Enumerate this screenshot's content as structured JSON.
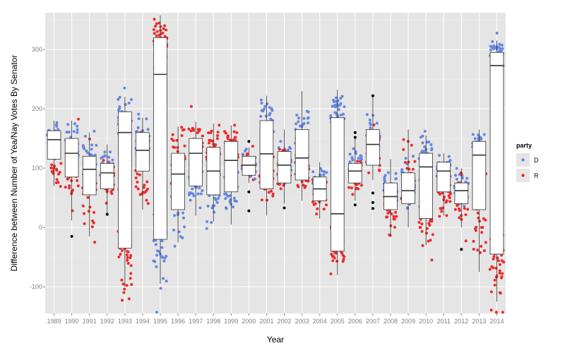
{
  "chart_data": {
    "type": "box-jitter",
    "title": "",
    "xlabel": "Year",
    "ylabel": "Difference between Number of Yea/Nay Votes By Senator",
    "ylim": [
      -145,
      362
    ],
    "yticks": [
      -100,
      0,
      100,
      200,
      300
    ],
    "grid": true,
    "legend": {
      "title": "party",
      "position": "right",
      "entries": [
        {
          "label": "D",
          "color": "#6486e0"
        },
        {
          "label": "R",
          "color": "#ee2a2a"
        }
      ]
    },
    "categories": [
      "1989",
      "1990",
      "1991",
      "1992",
      "1993",
      "1994",
      "1995",
      "1996",
      "1997",
      "1998",
      "1999",
      "2000",
      "2001",
      "2002",
      "2003",
      "2004",
      "2005",
      "2006",
      "2007",
      "2008",
      "2009",
      "2010",
      "2011",
      "2012",
      "2013",
      "2014"
    ],
    "boxes": [
      {
        "year": "1989",
        "q1": 115,
        "median": 148,
        "q3": 163,
        "lower": 70,
        "upper": 180
      },
      {
        "year": "1990",
        "q1": 85,
        "median": 125,
        "q3": 150,
        "lower": 12,
        "upper": 180
      },
      {
        "year": "1991",
        "q1": 55,
        "median": 98,
        "q3": 120,
        "lower": -15,
        "upper": 160
      },
      {
        "year": "1992",
        "q1": 65,
        "median": 92,
        "q3": 108,
        "lower": 20,
        "upper": 140
      },
      {
        "year": "1993",
        "q1": -35,
        "median": 160,
        "q3": 195,
        "lower": -100,
        "upper": 220
      },
      {
        "year": "1994",
        "q1": 95,
        "median": 130,
        "q3": 160,
        "lower": 30,
        "upper": 185
      },
      {
        "year": "1995",
        "q1": -20,
        "median": 258,
        "q3": 320,
        "lower": -95,
        "upper": 358
      },
      {
        "year": "1996",
        "q1": 30,
        "median": 90,
        "q3": 125,
        "lower": -25,
        "upper": 170
      },
      {
        "year": "1997",
        "q1": 70,
        "median": 125,
        "q3": 150,
        "lower": 20,
        "upper": 178
      },
      {
        "year": "1998",
        "q1": 55,
        "median": 95,
        "q3": 135,
        "lower": 10,
        "upper": 175
      },
      {
        "year": "1999",
        "q1": 60,
        "median": 113,
        "q3": 145,
        "lower": 5,
        "upper": 172
      },
      {
        "year": "2000",
        "q1": 88,
        "median": 105,
        "q3": 120,
        "lower": 75,
        "upper": 135
      },
      {
        "year": "2001",
        "q1": 65,
        "median": 124,
        "q3": 180,
        "lower": 20,
        "upper": 222
      },
      {
        "year": "2002",
        "q1": 75,
        "median": 105,
        "q3": 128,
        "lower": 40,
        "upper": 165
      },
      {
        "year": "2003",
        "q1": 80,
        "median": 117,
        "q3": 165,
        "lower": 45,
        "upper": 230
      },
      {
        "year": "2004",
        "q1": 45,
        "median": 65,
        "q3": 85,
        "lower": 15,
        "upper": 110
      },
      {
        "year": "2005",
        "q1": -40,
        "median": 23,
        "q3": 185,
        "lower": -80,
        "upper": 232
      },
      {
        "year": "2006",
        "q1": 75,
        "median": 95,
        "q3": 108,
        "lower": 45,
        "upper": 150
      },
      {
        "year": "2007",
        "q1": 105,
        "median": 140,
        "q3": 165,
        "lower": 80,
        "upper": 222
      },
      {
        "year": "2008",
        "q1": 30,
        "median": 52,
        "q3": 75,
        "lower": -15,
        "upper": 115
      },
      {
        "year": "2009",
        "q1": 40,
        "median": 62,
        "q3": 92,
        "lower": 0,
        "upper": 165
      },
      {
        "year": "2010",
        "q1": 15,
        "median": 102,
        "q3": 125,
        "lower": -30,
        "upper": 155
      },
      {
        "year": "2011",
        "q1": 60,
        "median": 95,
        "q3": 110,
        "lower": 20,
        "upper": 125
      },
      {
        "year": "2012",
        "q1": 40,
        "median": 62,
        "q3": 75,
        "lower": 0,
        "upper": 100
      },
      {
        "year": "2013",
        "q1": 30,
        "median": 122,
        "q3": 145,
        "lower": -75,
        "upper": 165
      },
      {
        "year": "2014",
        "q1": -45,
        "median": 273,
        "q3": 295,
        "lower": -125,
        "upper": 315
      }
    ],
    "clusters": [
      {
        "year": "1989",
        "party": "D",
        "center": 160,
        "spread": 12,
        "n": 30
      },
      {
        "year": "1989",
        "party": "R",
        "center": 105,
        "spread": 18,
        "n": 25
      },
      {
        "year": "1990",
        "party": "D",
        "center": 148,
        "spread": 18,
        "n": 25
      },
      {
        "year": "1990",
        "party": "R",
        "center": 90,
        "spread": 35,
        "n": 28
      },
      {
        "year": "1991",
        "party": "D",
        "center": 115,
        "spread": 20,
        "n": 28
      },
      {
        "year": "1991",
        "party": "R",
        "center": 60,
        "spread": 35,
        "n": 28
      },
      {
        "year": "1992",
        "party": "D",
        "center": 100,
        "spread": 18,
        "n": 28
      },
      {
        "year": "1992",
        "party": "R",
        "center": 80,
        "spread": 18,
        "n": 28
      },
      {
        "year": "1993",
        "party": "D",
        "center": 190,
        "spread": 15,
        "n": 35
      },
      {
        "year": "1993",
        "party": "R",
        "center": -50,
        "spread": 30,
        "n": 32
      },
      {
        "year": "1994",
        "party": "D",
        "center": 150,
        "spread": 20,
        "n": 35
      },
      {
        "year": "1994",
        "party": "R",
        "center": 90,
        "spread": 35,
        "n": 25
      },
      {
        "year": "1995",
        "party": "R",
        "center": 320,
        "spread": 15,
        "n": 40
      },
      {
        "year": "1995",
        "party": "D",
        "center": -40,
        "spread": 35,
        "n": 28
      },
      {
        "year": "1996",
        "party": "R",
        "center": 120,
        "spread": 25,
        "n": 30
      },
      {
        "year": "1996",
        "party": "D",
        "center": 40,
        "spread": 35,
        "n": 32
      },
      {
        "year": "1997",
        "party": "R",
        "center": 145,
        "spread": 18,
        "n": 35
      },
      {
        "year": "1997",
        "party": "D",
        "center": 70,
        "spread": 25,
        "n": 28
      },
      {
        "year": "1998",
        "party": "R",
        "center": 130,
        "spread": 20,
        "n": 35
      },
      {
        "year": "1998",
        "party": "D",
        "center": 55,
        "spread": 25,
        "n": 28
      },
      {
        "year": "1999",
        "party": "R",
        "center": 145,
        "spread": 15,
        "n": 35
      },
      {
        "year": "1999",
        "party": "D",
        "center": 60,
        "spread": 25,
        "n": 30
      },
      {
        "year": "2000",
        "party": "R",
        "center": 105,
        "spread": 12,
        "n": 28
      },
      {
        "year": "2000",
        "party": "D",
        "center": 105,
        "spread": 10,
        "n": 25
      },
      {
        "year": "2001",
        "party": "D",
        "center": 175,
        "spread": 20,
        "n": 30
      },
      {
        "year": "2001",
        "party": "R",
        "center": 70,
        "spread": 25,
        "n": 32
      },
      {
        "year": "2002",
        "party": "D",
        "center": 115,
        "spread": 20,
        "n": 30
      },
      {
        "year": "2002",
        "party": "R",
        "center": 95,
        "spread": 22,
        "n": 30
      },
      {
        "year": "2003",
        "party": "D",
        "center": 165,
        "spread": 25,
        "n": 30
      },
      {
        "year": "2003",
        "party": "R",
        "center": 95,
        "spread": 20,
        "n": 30
      },
      {
        "year": "2004",
        "party": "D",
        "center": 75,
        "spread": 15,
        "n": 30
      },
      {
        "year": "2004",
        "party": "R",
        "center": 60,
        "spread": 15,
        "n": 30
      },
      {
        "year": "2005",
        "party": "D",
        "center": 195,
        "spread": 18,
        "n": 35
      },
      {
        "year": "2005",
        "party": "R",
        "center": -40,
        "spread": 20,
        "n": 35
      },
      {
        "year": "2006",
        "party": "D",
        "center": 105,
        "spread": 15,
        "n": 28
      },
      {
        "year": "2006",
        "party": "R",
        "center": 85,
        "spread": 15,
        "n": 28
      },
      {
        "year": "2007",
        "party": "D",
        "center": 160,
        "spread": 15,
        "n": 30
      },
      {
        "year": "2007",
        "party": "R",
        "center": 130,
        "spread": 20,
        "n": 30
      },
      {
        "year": "2008",
        "party": "D",
        "center": 65,
        "spread": 15,
        "n": 30
      },
      {
        "year": "2008",
        "party": "R",
        "center": 35,
        "spread": 20,
        "n": 30
      },
      {
        "year": "2009",
        "party": "D",
        "center": 65,
        "spread": 25,
        "n": 35
      },
      {
        "year": "2009",
        "party": "R",
        "center": 95,
        "spread": 30,
        "n": 28
      },
      {
        "year": "2010",
        "party": "D",
        "center": 115,
        "spread": 18,
        "n": 35
      },
      {
        "year": "2010",
        "party": "R",
        "center": 20,
        "spread": 25,
        "n": 30
      },
      {
        "year": "2011",
        "party": "D",
        "center": 100,
        "spread": 12,
        "n": 30
      },
      {
        "year": "2011",
        "party": "R",
        "center": 60,
        "spread": 20,
        "n": 30
      },
      {
        "year": "2012",
        "party": "D",
        "center": 70,
        "spread": 12,
        "n": 28
      },
      {
        "year": "2012",
        "party": "R",
        "center": 45,
        "spread": 18,
        "n": 28
      },
      {
        "year": "2013",
        "party": "D",
        "center": 140,
        "spread": 10,
        "n": 32
      },
      {
        "year": "2013",
        "party": "R",
        "center": 10,
        "spread": 40,
        "n": 32
      },
      {
        "year": "2014",
        "party": "D",
        "center": 295,
        "spread": 10,
        "n": 40
      },
      {
        "year": "2014",
        "party": "R",
        "center": -60,
        "spread": 35,
        "n": 38
      }
    ],
    "outliers": [
      {
        "year": "1990",
        "value": -15
      },
      {
        "year": "1992",
        "value": 22
      },
      {
        "year": "2000",
        "value": 145
      },
      {
        "year": "2000",
        "value": 60
      },
      {
        "year": "2000",
        "value": 28
      },
      {
        "year": "2002",
        "value": 33
      },
      {
        "year": "2006",
        "value": 160
      },
      {
        "year": "2006",
        "value": 152
      },
      {
        "year": "2006",
        "value": 38
      },
      {
        "year": "2007",
        "value": 222
      },
      {
        "year": "2007",
        "value": 58
      },
      {
        "year": "2007",
        "value": 42
      },
      {
        "year": "2007",
        "value": 32
      },
      {
        "year": "2012",
        "value": -37
      }
    ]
  }
}
